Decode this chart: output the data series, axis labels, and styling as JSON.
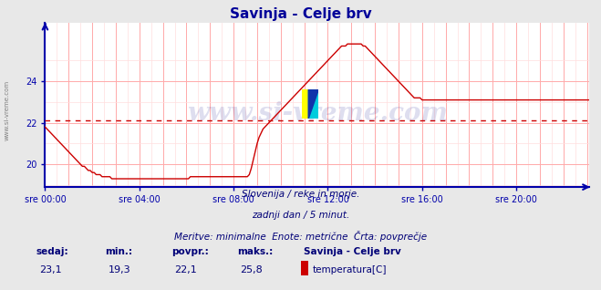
{
  "title": "Savinja - Celje brv",
  "title_color": "#000099",
  "bg_color": "#e8e8e8",
  "plot_bg_color": "#ffffff",
  "grid_color_major": "#ffaaaa",
  "grid_color_minor": "#ffdddd",
  "line_color": "#cc0000",
  "avg_line_color": "#cc0000",
  "avg_value": 22.1,
  "tick_color": "#0000aa",
  "label_color": "#0000aa",
  "text_color": "#000077",
  "watermark": "www.si-vreme.com",
  "watermark_color": "#000088",
  "watermark_alpha": 0.13,
  "xlabels": [
    "sre 00:00",
    "sre 04:00",
    "sre 08:00",
    "sre 12:00",
    "sre 16:00",
    "sre 20:00"
  ],
  "xtick_positions": [
    0,
    48,
    96,
    144,
    192,
    240
  ],
  "ylim": [
    18.9,
    26.8
  ],
  "yticks": [
    20,
    22,
    24
  ],
  "subtitle1": "Slovenija / reke in morje.",
  "subtitle2": "zadnji dan / 5 minut.",
  "subtitle3": "Meritve: minimalne  Enote: metrične  Črta: povprečje",
  "legend_station": "Savinja - Celje brv",
  "legend_param": "temperatura[C]",
  "stats_labels": [
    "sedaj:",
    "min.:",
    "povpr.:",
    "maks.:"
  ],
  "stats_values": [
    "23,1",
    "19,3",
    "22,1",
    "25,8"
  ],
  "temperature_data": [
    21.8,
    21.7,
    21.6,
    21.5,
    21.4,
    21.3,
    21.2,
    21.1,
    21.0,
    20.9,
    20.8,
    20.7,
    20.6,
    20.5,
    20.4,
    20.3,
    20.2,
    20.1,
    20.0,
    19.9,
    19.9,
    19.8,
    19.7,
    19.7,
    19.6,
    19.6,
    19.5,
    19.5,
    19.5,
    19.4,
    19.4,
    19.4,
    19.4,
    19.4,
    19.3,
    19.3,
    19.3,
    19.3,
    19.3,
    19.3,
    19.3,
    19.3,
    19.3,
    19.3,
    19.3,
    19.3,
    19.3,
    19.3,
    19.3,
    19.3,
    19.3,
    19.3,
    19.3,
    19.3,
    19.3,
    19.3,
    19.3,
    19.3,
    19.3,
    19.3,
    19.3,
    19.3,
    19.3,
    19.3,
    19.3,
    19.3,
    19.3,
    19.3,
    19.3,
    19.3,
    19.3,
    19.3,
    19.3,
    19.3,
    19.4,
    19.4,
    19.4,
    19.4,
    19.4,
    19.4,
    19.4,
    19.4,
    19.4,
    19.4,
    19.4,
    19.4,
    19.4,
    19.4,
    19.4,
    19.4,
    19.4,
    19.4,
    19.4,
    19.4,
    19.4,
    19.4,
    19.4,
    19.4,
    19.4,
    19.4,
    19.4,
    19.4,
    19.4,
    19.4,
    19.5,
    19.8,
    20.2,
    20.6,
    21.0,
    21.3,
    21.5,
    21.7,
    21.8,
    21.9,
    22.0,
    22.1,
    22.2,
    22.3,
    22.4,
    22.5,
    22.6,
    22.7,
    22.8,
    22.9,
    23.0,
    23.1,
    23.2,
    23.3,
    23.4,
    23.5,
    23.6,
    23.7,
    23.8,
    23.9,
    24.0,
    24.1,
    24.2,
    24.3,
    24.4,
    24.5,
    24.6,
    24.7,
    24.8,
    24.9,
    25.0,
    25.1,
    25.2,
    25.3,
    25.4,
    25.5,
    25.6,
    25.7,
    25.7,
    25.7,
    25.8,
    25.8,
    25.8,
    25.8,
    25.8,
    25.8,
    25.8,
    25.8,
    25.7,
    25.7,
    25.6,
    25.5,
    25.4,
    25.3,
    25.2,
    25.1,
    25.0,
    24.9,
    24.8,
    24.7,
    24.6,
    24.5,
    24.4,
    24.3,
    24.2,
    24.1,
    24.0,
    23.9,
    23.8,
    23.7,
    23.6,
    23.5,
    23.4,
    23.3,
    23.2,
    23.2,
    23.2,
    23.2,
    23.1,
    23.1,
    23.1,
    23.1,
    23.1,
    23.1,
    23.1,
    23.1,
    23.1,
    23.1,
    23.1,
    23.1,
    23.1,
    23.1,
    23.1,
    23.1,
    23.1,
    23.1,
    23.1,
    23.1,
    23.1,
    23.1,
    23.1,
    23.1,
    23.1,
    23.1,
    23.1,
    23.1,
    23.1,
    23.1,
    23.1,
    23.1,
    23.1,
    23.1,
    23.1,
    23.1,
    23.1,
    23.1,
    23.1,
    23.1,
    23.1,
    23.1,
    23.1,
    23.1,
    23.1,
    23.1,
    23.1,
    23.1,
    23.1,
    23.1,
    23.1,
    23.1,
    23.1,
    23.1,
    23.1,
    23.1,
    23.1,
    23.1,
    23.1,
    23.1,
    23.1,
    23.1,
    23.1,
    23.1,
    23.1,
    23.1,
    23.1,
    23.1,
    23.1,
    23.1,
    23.1,
    23.1,
    23.1,
    23.1,
    23.1,
    23.1,
    23.1,
    23.1,
    23.1,
    23.1,
    23.1,
    23.1,
    23.1,
    23.1,
    23.1,
    23.1
  ]
}
